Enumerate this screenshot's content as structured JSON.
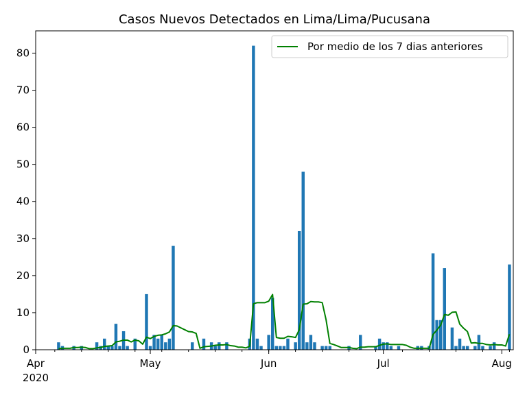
{
  "chart_data": {
    "type": "bar",
    "title": "Casos Nuevos Detectados en Lima/Lima/Pucusana",
    "xlabel": "",
    "ylabel": "",
    "ylim": [
      0,
      86
    ],
    "yticks": [
      0,
      10,
      20,
      30,
      40,
      50,
      60,
      70,
      80
    ],
    "xlim": [
      "2020-04-01",
      "2020-08-04"
    ],
    "xticks": [
      {
        "date": "2020-04-01",
        "label": "Apr",
        "sublabel": "2020"
      },
      {
        "date": "2020-05-01",
        "label": "May",
        "sublabel": ""
      },
      {
        "date": "2020-06-01",
        "label": "Jun",
        "sublabel": ""
      },
      {
        "date": "2020-07-01",
        "label": "Jul",
        "sublabel": ""
      },
      {
        "date": "2020-08-01",
        "label": "Aug",
        "sublabel": ""
      }
    ],
    "legend": {
      "position": "top-right",
      "entries": [
        "Por medio de los 7 dias anteriores"
      ]
    },
    "grid": false,
    "colors": {
      "bars": "#1f77b4",
      "line": "#008000"
    },
    "series": [
      {
        "type": "bar",
        "points": [
          [
            "2020-04-07",
            2
          ],
          [
            "2020-04-08",
            1
          ],
          [
            "2020-04-11",
            1
          ],
          [
            "2020-04-13",
            1
          ],
          [
            "2020-04-17",
            2
          ],
          [
            "2020-04-18",
            1
          ],
          [
            "2020-04-19",
            3
          ],
          [
            "2020-04-20",
            1
          ],
          [
            "2020-04-21",
            1
          ],
          [
            "2020-04-22",
            7
          ],
          [
            "2020-04-23",
            1
          ],
          [
            "2020-04-24",
            5
          ],
          [
            "2020-04-25",
            1
          ],
          [
            "2020-04-27",
            3
          ],
          [
            "2020-04-30",
            15
          ],
          [
            "2020-05-01",
            1
          ],
          [
            "2020-05-02",
            4
          ],
          [
            "2020-05-03",
            3
          ],
          [
            "2020-05-04",
            4
          ],
          [
            "2020-05-05",
            2
          ],
          [
            "2020-05-06",
            3
          ],
          [
            "2020-05-07",
            28
          ],
          [
            "2020-05-12",
            2
          ],
          [
            "2020-05-15",
            3
          ],
          [
            "2020-05-17",
            2
          ],
          [
            "2020-05-18",
            1
          ],
          [
            "2020-05-19",
            2
          ],
          [
            "2020-05-21",
            2
          ],
          [
            "2020-05-27",
            3
          ],
          [
            "2020-05-28",
            82
          ],
          [
            "2020-05-29",
            3
          ],
          [
            "2020-05-30",
            1
          ],
          [
            "2020-06-01",
            4
          ],
          [
            "2020-06-02",
            14
          ],
          [
            "2020-06-03",
            1
          ],
          [
            "2020-06-04",
            1
          ],
          [
            "2020-06-05",
            1
          ],
          [
            "2020-06-06",
            3
          ],
          [
            "2020-06-08",
            2
          ],
          [
            "2020-06-09",
            32
          ],
          [
            "2020-06-10",
            48
          ],
          [
            "2020-06-11",
            2
          ],
          [
            "2020-06-12",
            4
          ],
          [
            "2020-06-13",
            2
          ],
          [
            "2020-06-15",
            1
          ],
          [
            "2020-06-16",
            1
          ],
          [
            "2020-06-17",
            1
          ],
          [
            "2020-06-22",
            1
          ],
          [
            "2020-06-25",
            4
          ],
          [
            "2020-06-29",
            1
          ],
          [
            "2020-06-30",
            3
          ],
          [
            "2020-07-01",
            2
          ],
          [
            "2020-07-02",
            2
          ],
          [
            "2020-07-03",
            1
          ],
          [
            "2020-07-05",
            1
          ],
          [
            "2020-07-10",
            1
          ],
          [
            "2020-07-11",
            1
          ],
          [
            "2020-07-13",
            1
          ],
          [
            "2020-07-14",
            26
          ],
          [
            "2020-07-15",
            8
          ],
          [
            "2020-07-16",
            8
          ],
          [
            "2020-07-17",
            22
          ],
          [
            "2020-07-19",
            6
          ],
          [
            "2020-07-20",
            1
          ],
          [
            "2020-07-21",
            3
          ],
          [
            "2020-07-22",
            1
          ],
          [
            "2020-07-23",
            1
          ],
          [
            "2020-07-25",
            1
          ],
          [
            "2020-07-26",
            4
          ],
          [
            "2020-07-27",
            1
          ],
          [
            "2020-07-29",
            1
          ],
          [
            "2020-07-30",
            2
          ],
          [
            "2020-08-03",
            23
          ]
        ]
      },
      {
        "type": "line",
        "name": "Por medio de los 7 dias anteriores",
        "points": [
          [
            "2020-04-07",
            0.3
          ],
          [
            "2020-04-08",
            0.4
          ],
          [
            "2020-04-09",
            0.4
          ],
          [
            "2020-04-10",
            0.4
          ],
          [
            "2020-04-11",
            0.6
          ],
          [
            "2020-04-12",
            0.6
          ],
          [
            "2020-04-13",
            0.7
          ],
          [
            "2020-04-14",
            0.6
          ],
          [
            "2020-04-15",
            0.3
          ],
          [
            "2020-04-16",
            0.3
          ],
          [
            "2020-04-17",
            0.5
          ],
          [
            "2020-04-18",
            0.6
          ],
          [
            "2020-04-19",
            0.9
          ],
          [
            "2020-04-20",
            1.0
          ],
          [
            "2020-04-21",
            1.1
          ],
          [
            "2020-04-22",
            2.1
          ],
          [
            "2020-04-23",
            2.3
          ],
          [
            "2020-04-24",
            2.6
          ],
          [
            "2020-04-25",
            2.6
          ],
          [
            "2020-04-26",
            2.1
          ],
          [
            "2020-04-27",
            2.6
          ],
          [
            "2020-04-28",
            2.4
          ],
          [
            "2020-04-29",
            1.5
          ],
          [
            "2020-04-30",
            3.4
          ],
          [
            "2020-05-01",
            3.0
          ],
          [
            "2020-05-02",
            3.6
          ],
          [
            "2020-05-03",
            3.9
          ],
          [
            "2020-05-04",
            4.0
          ],
          [
            "2020-05-05",
            4.3
          ],
          [
            "2020-05-06",
            4.8
          ],
          [
            "2020-05-07",
            6.5
          ],
          [
            "2020-05-08",
            6.4
          ],
          [
            "2020-05-09",
            5.9
          ],
          [
            "2020-05-10",
            5.4
          ],
          [
            "2020-05-11",
            4.9
          ],
          [
            "2020-05-12",
            4.8
          ],
          [
            "2020-05-13",
            4.4
          ],
          [
            "2020-05-14",
            0.4
          ],
          [
            "2020-05-15",
            0.8
          ],
          [
            "2020-05-16",
            0.9
          ],
          [
            "2020-05-17",
            1.0
          ],
          [
            "2020-05-18",
            1.2
          ],
          [
            "2020-05-19",
            1.3
          ],
          [
            "2020-05-20",
            1.3
          ],
          [
            "2020-05-21",
            1.4
          ],
          [
            "2020-05-22",
            1.1
          ],
          [
            "2020-05-23",
            1.0
          ],
          [
            "2020-05-24",
            0.7
          ],
          [
            "2020-05-25",
            0.7
          ],
          [
            "2020-05-26",
            0.5
          ],
          [
            "2020-05-27",
            0.9
          ],
          [
            "2020-05-28",
            12.4
          ],
          [
            "2020-05-29",
            12.7
          ],
          [
            "2020-05-30",
            12.7
          ],
          [
            "2020-05-31",
            12.7
          ],
          [
            "2020-06-01",
            13.1
          ],
          [
            "2020-06-02",
            14.9
          ],
          [
            "2020-06-03",
            3.3
          ],
          [
            "2020-06-04",
            3.1
          ],
          [
            "2020-06-05",
            3.1
          ],
          [
            "2020-06-06",
            3.6
          ],
          [
            "2020-06-07",
            3.5
          ],
          [
            "2020-06-08",
            3.3
          ],
          [
            "2020-06-09",
            5.4
          ],
          [
            "2020-06-10",
            12.3
          ],
          [
            "2020-06-11",
            12.4
          ],
          [
            "2020-06-12",
            13.0
          ],
          [
            "2020-06-13",
            12.9
          ],
          [
            "2020-06-14",
            12.9
          ],
          [
            "2020-06-15",
            12.7
          ],
          [
            "2020-06-16",
            8.1
          ],
          [
            "2020-06-17",
            1.7
          ],
          [
            "2020-06-18",
            1.4
          ],
          [
            "2020-06-19",
            1.0
          ],
          [
            "2020-06-20",
            0.6
          ],
          [
            "2020-06-21",
            0.6
          ],
          [
            "2020-06-22",
            0.6
          ],
          [
            "2020-06-23",
            0.4
          ],
          [
            "2020-06-24",
            0.3
          ],
          [
            "2020-06-25",
            0.7
          ],
          [
            "2020-06-26",
            0.7
          ],
          [
            "2020-06-27",
            0.8
          ],
          [
            "2020-06-28",
            0.8
          ],
          [
            "2020-06-29",
            0.8
          ],
          [
            "2020-06-30",
            1.2
          ],
          [
            "2020-07-01",
            1.5
          ],
          [
            "2020-07-02",
            1.6
          ],
          [
            "2020-07-03",
            1.4
          ],
          [
            "2020-07-04",
            1.4
          ],
          [
            "2020-07-05",
            1.4
          ],
          [
            "2020-07-06",
            1.4
          ],
          [
            "2020-07-07",
            1.2
          ],
          [
            "2020-07-08",
            0.7
          ],
          [
            "2020-07-09",
            0.4
          ],
          [
            "2020-07-10",
            0.4
          ],
          [
            "2020-07-11",
            0.4
          ],
          [
            "2020-07-12",
            0.4
          ],
          [
            "2020-07-13",
            0.4
          ],
          [
            "2020-07-14",
            4.1
          ],
          [
            "2020-07-15",
            5.3
          ],
          [
            "2020-07-16",
            6.6
          ],
          [
            "2020-07-17",
            9.5
          ],
          [
            "2020-07-18",
            9.3
          ],
          [
            "2020-07-19",
            10.1
          ],
          [
            "2020-07-20",
            10.2
          ],
          [
            "2020-07-21",
            6.9
          ],
          [
            "2020-07-22",
            5.8
          ],
          [
            "2020-07-23",
            4.9
          ],
          [
            "2020-07-24",
            1.8
          ],
          [
            "2020-07-25",
            1.9
          ],
          [
            "2020-07-26",
            1.7
          ],
          [
            "2020-07-27",
            1.7
          ],
          [
            "2020-07-28",
            1.4
          ],
          [
            "2020-07-29",
            1.3
          ],
          [
            "2020-07-30",
            1.4
          ],
          [
            "2020-07-31",
            1.3
          ],
          [
            "2020-08-01",
            1.3
          ],
          [
            "2020-08-02",
            1.0
          ],
          [
            "2020-08-03",
            4.2
          ]
        ]
      }
    ]
  }
}
